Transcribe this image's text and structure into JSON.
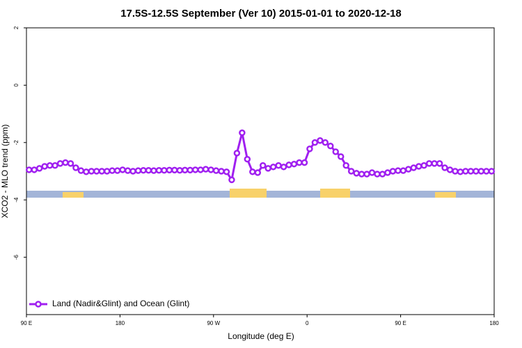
{
  "chart_data": {
    "type": "line",
    "title": "17.5S-12.5S September (Ver 10)   2015-01-01 to 2020-12-18",
    "x_label": "Longitude (deg E)",
    "y_label": "XCO2 - MLO trend (ppm)",
    "xlim": [
      90,
      540
    ],
    "xticks": [
      {
        "value": 90,
        "label": "90 E"
      },
      180,
      {
        "value": 270,
        "label": "90 W"
      },
      {
        "value": 360,
        "label": "0"
      },
      {
        "value": 450,
        "label": "90 E"
      },
      {
        "value": 540,
        "label": "180"
      }
    ],
    "ylim": [
      -8,
      2
    ],
    "yticks": [
      -6,
      -4,
      -2,
      0,
      2
    ],
    "legend": "bottom-left",
    "x": [
      92.5,
      97.5,
      102.5,
      107.5,
      112.5,
      117.5,
      122.5,
      127.5,
      132.5,
      137.5,
      142.5,
      147.5,
      152.5,
      157.5,
      162.5,
      167.5,
      172.5,
      177.5,
      182.5,
      187.5,
      192.5,
      197.5,
      202.5,
      207.5,
      212.5,
      217.5,
      222.5,
      227.5,
      232.5,
      237.5,
      242.5,
      247.5,
      252.5,
      257.5,
      262.5,
      267.5,
      272.5,
      277.5,
      282.5,
      287.5,
      292.5,
      297.5,
      302.5,
      307.5,
      312.5,
      317.5,
      322.5,
      327.5,
      332.5,
      337.5,
      342.5,
      347.5,
      352.5,
      357.5,
      362.5,
      367.5,
      372.5,
      377.5,
      382.5,
      387.5,
      392.5,
      397.5,
      402.5,
      407.5,
      412.5,
      417.5,
      422.5,
      427.5,
      432.5,
      437.5,
      442.5,
      447.5,
      452.5,
      457.5,
      462.5,
      467.5,
      472.5,
      477.5,
      482.5,
      487.5,
      492.5,
      497.5,
      502.5,
      507.5,
      512.5,
      517.5,
      522.5,
      527.5,
      532.5,
      537.5
    ],
    "series": [
      {
        "name": "Land (Nadir&Glint) and Ocean (Glint)",
        "color": "#a020f0",
        "values": [
          -2.95,
          -2.95,
          -2.9,
          -2.83,
          -2.8,
          -2.8,
          -2.73,
          -2.7,
          -2.73,
          -2.88,
          -2.98,
          -3.02,
          -3.0,
          -3.0,
          -3.0,
          -3.0,
          -2.98,
          -2.98,
          -2.95,
          -2.98,
          -3.0,
          -2.98,
          -2.97,
          -2.97,
          -2.98,
          -2.97,
          -2.97,
          -2.96,
          -2.96,
          -2.97,
          -2.96,
          -2.96,
          -2.95,
          -2.95,
          -2.93,
          -2.95,
          -2.98,
          -3.0,
          -3.02,
          -3.3,
          -2.37,
          -1.66,
          -2.58,
          -3.02,
          -3.05,
          -2.8,
          -2.9,
          -2.85,
          -2.8,
          -2.85,
          -2.78,
          -2.75,
          -2.7,
          -2.7,
          -2.22,
          -2.0,
          -1.93,
          -2.0,
          -2.12,
          -2.32,
          -2.49,
          -2.8,
          -3.0,
          -3.07,
          -3.1,
          -3.1,
          -3.05,
          -3.1,
          -3.1,
          -3.05,
          -3.0,
          -2.98,
          -2.98,
          -2.93,
          -2.88,
          -2.83,
          -2.8,
          -2.73,
          -2.73,
          -2.73,
          -2.88,
          -2.95,
          -3.0,
          -3.02,
          -3.0,
          -3.0,
          -3.0,
          -3.0,
          -3.0,
          -3.0
        ]
      }
    ]
  }
}
